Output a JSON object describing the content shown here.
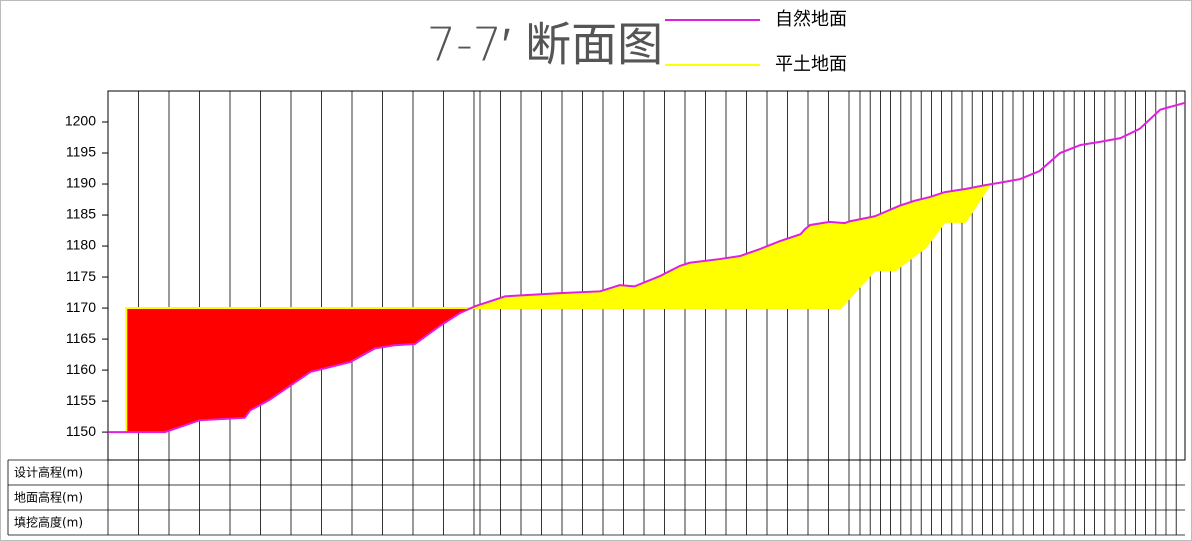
{
  "chart_data": {
    "type": "line",
    "title": "7-7′ 断面图",
    "legend": "top",
    "grid": false,
    "xlim": [
      0,
      100
    ],
    "ylim": [
      1145.5,
      1205
    ],
    "yticks": [
      1150,
      1155,
      1160,
      1165,
      1170,
      1175,
      1180,
      1185,
      1190,
      1195,
      1200
    ],
    "cut_color": "#ff0000",
    "series": [
      {
        "name": "自然地面",
        "color": "#e020e0",
        "x": [
          0,
          5.3,
          8.5,
          12.7,
          13.2,
          15.0,
          18.8,
          22.5,
          24.8,
          26.6,
          28.5,
          30.8,
          32.7,
          34.1,
          36.9,
          42.0,
          45.7,
          47.5,
          48.9,
          51.3,
          53.1,
          54.0,
          56.8,
          58.7,
          60.5,
          62.4,
          64.3,
          64.7,
          65.2,
          67.0,
          68.4,
          68.9,
          71.2,
          73.5,
          74.9,
          76.3,
          77.7,
          79.6,
          81.4,
          82.8,
          84.7,
          86.5,
          88.4,
          90.3,
          92.1,
          94.0,
          95.8,
          97.7,
          100
        ],
        "values": [
          1150,
          1150,
          1151.9,
          1152.3,
          1153.5,
          1155.2,
          1159.7,
          1161.3,
          1163.5,
          1164.0,
          1164.2,
          1167.1,
          1169.2,
          1170.3,
          1171.9,
          1172.4,
          1172.7,
          1173.7,
          1173.5,
          1175.2,
          1176.8,
          1177.3,
          1177.9,
          1178.4,
          1179.5,
          1180.8,
          1181.9,
          1182.7,
          1183.4,
          1183.9,
          1183.7,
          1184.0,
          1184.8,
          1186.5,
          1187.3,
          1187.9,
          1188.7,
          1189.2,
          1189.8,
          1190.2,
          1190.8,
          1192.1,
          1195.0,
          1196.3,
          1196.8,
          1197.4,
          1198.9,
          1202.0,
          1203.1
        ]
      },
      {
        "name": "平土地面",
        "color": "#ffff00",
        "x": [
          1.7,
          1.7,
          68.0,
          71.2,
          73.1,
          75.9,
          77.7,
          79.6,
          81.9
        ],
        "values": [
          1150,
          1170,
          1170,
          1176.1,
          1176.1,
          1179.8,
          1183.9,
          1183.9,
          1190.0
        ]
      }
    ],
    "table_rows": [
      "设计高程(m)",
      "地面高程(m)",
      "填挖高度(m)"
    ]
  }
}
